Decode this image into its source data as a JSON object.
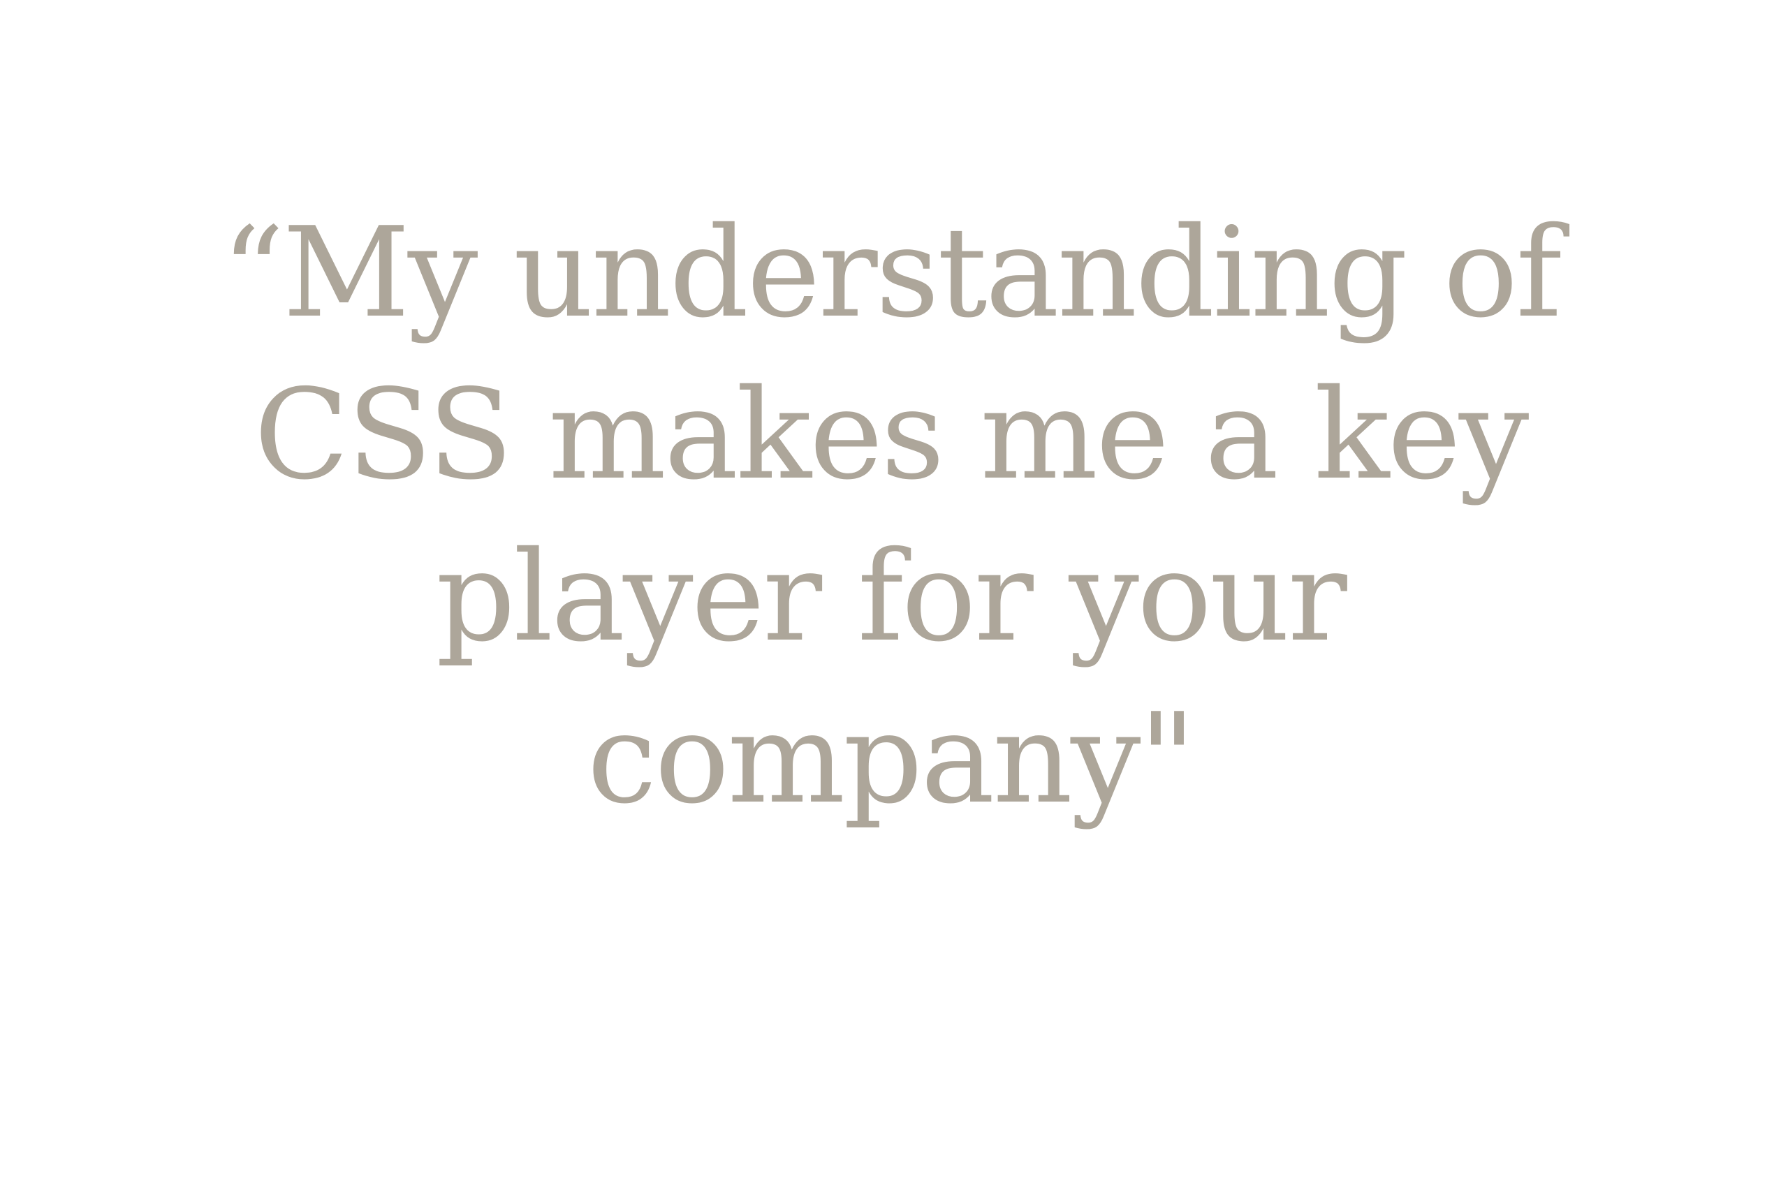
{
  "quote": {
    "lines": [
      "“My understanding of",
      "CSS makes me a key",
      "player for your",
      "company\""
    ]
  },
  "colors": {
    "background": "#ffffff",
    "text": "#ada69a"
  }
}
